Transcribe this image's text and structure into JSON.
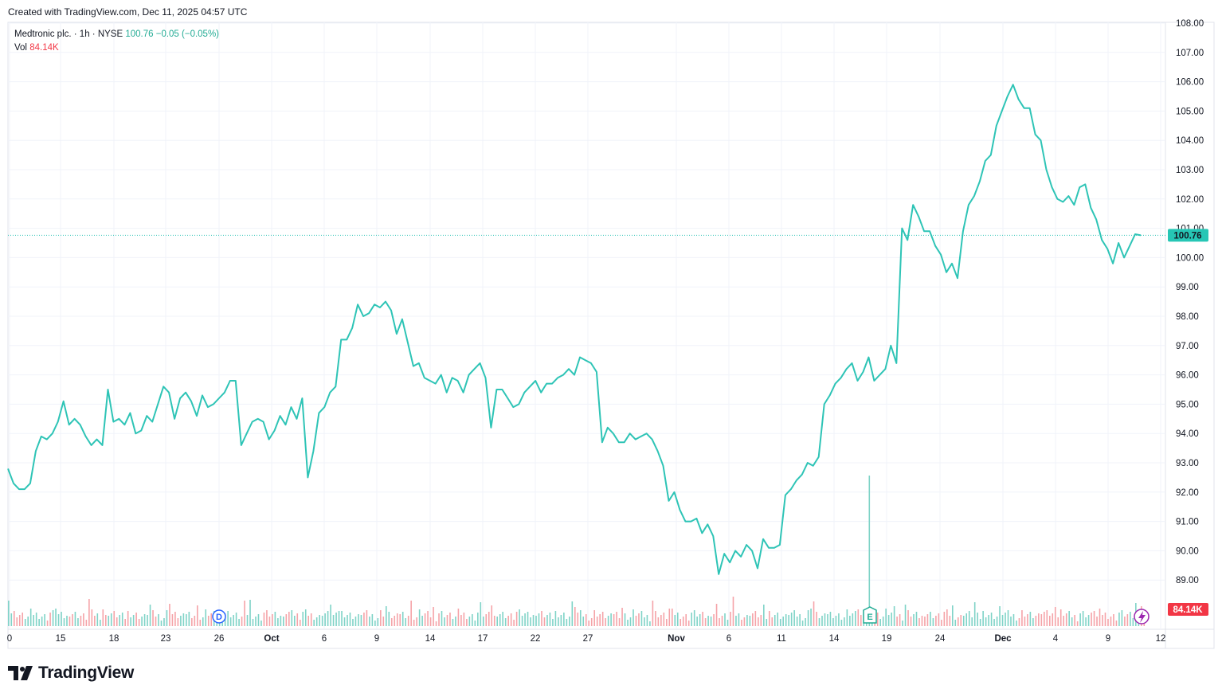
{
  "header": {
    "created_text": "Created with TradingView.com, Dec 11, 2025 04:57 UTC"
  },
  "legend": {
    "symbol": "Medtronic plc. · 1h · NYSE",
    "price": "100.76",
    "change": "−0.05 (−0.05%)",
    "vol_label": "Vol",
    "vol_value": "84.14K"
  },
  "colors": {
    "line": "#2ec4b6",
    "vol_up": "#7fd3c7",
    "vol_down": "#f5a3a8",
    "grid": "#f0f3fa",
    "price_tag": "#26c6b5",
    "vol_tag": "#f23645"
  },
  "markers": {
    "dividend_icon": "D",
    "earnings_icon": "E"
  },
  "brand": {
    "name": "TradingView"
  },
  "chart_data": {
    "type": "line",
    "title": "",
    "symbol": "Medtronic plc.",
    "interval": "1h",
    "exchange": "NYSE",
    "last_price": 100.76,
    "last_price_label": "100.76",
    "volume_label": "84.14K",
    "ylim": [
      88.0,
      108.0
    ],
    "y_ticks": [
      "89.00",
      "90.00",
      "91.00",
      "92.00",
      "93.00",
      "94.00",
      "95.00",
      "96.00",
      "97.00",
      "98.00",
      "99.00",
      "100.00",
      "101.00",
      "102.00",
      "103.00",
      "104.00",
      "105.00",
      "106.00",
      "107.00",
      "108.00"
    ],
    "x_ticks": [
      "0",
      "15",
      "18",
      "23",
      "26",
      "Oct",
      "6",
      "9",
      "14",
      "17",
      "22",
      "27",
      "Nov",
      "6",
      "11",
      "14",
      "19",
      "24",
      "Dec",
      "4",
      "9",
      "12"
    ],
    "series": [
      {
        "values": [
          92.8,
          92.3,
          92.1,
          92.1,
          92.3,
          93.4,
          93.9,
          93.8,
          94.0,
          94.4,
          95.1,
          94.3,
          94.5,
          94.3,
          93.9,
          93.6,
          93.8,
          93.6,
          95.5,
          94.4,
          94.5,
          94.3,
          94.7,
          94.0,
          94.1,
          94.6,
          94.4,
          95.0,
          95.6,
          95.4,
          94.5,
          95.2,
          95.4,
          95.1,
          94.6,
          95.3,
          94.9,
          95.0,
          95.2,
          95.4,
          95.8,
          95.8,
          93.6,
          94.0,
          94.4,
          94.5,
          94.4,
          93.8,
          94.1,
          94.6,
          94.3,
          94.9,
          94.5,
          95.2,
          92.5,
          93.4,
          94.7,
          94.9,
          95.4,
          95.6,
          97.2,
          97.2,
          97.6,
          98.4,
          98.0,
          98.1,
          98.4,
          98.3,
          98.5,
          98.2,
          97.4,
          97.9,
          97.1,
          96.3,
          96.4,
          95.9,
          95.8,
          95.7,
          96.0,
          95.4,
          95.9,
          95.8,
          95.4,
          96.0,
          96.2,
          96.4,
          95.9,
          94.2,
          95.5,
          95.5,
          95.2,
          94.9,
          95.0,
          95.4,
          95.6,
          95.8,
          95.4,
          95.7,
          95.7,
          95.9,
          96.0,
          96.2,
          96.0,
          96.6,
          96.5,
          96.4,
          96.1,
          93.7,
          94.2,
          94.0,
          93.7,
          93.7,
          94.0,
          93.8,
          93.9,
          94.0,
          93.8,
          93.4,
          92.9,
          91.7,
          92.0,
          91.4,
          91.0,
          91.0,
          91.1,
          90.6,
          90.9,
          90.5,
          89.2,
          89.9,
          89.6,
          90.0,
          89.8,
          90.2,
          90.0,
          89.4,
          90.4,
          90.1,
          90.1,
          90.2,
          91.9,
          92.1,
          92.4,
          92.6,
          93.0,
          92.9,
          93.2,
          95.0,
          95.3,
          95.7,
          95.9,
          96.2,
          96.4,
          95.8,
          96.1,
          96.6,
          95.8,
          96.0,
          96.2,
          97.0,
          96.4,
          101.0,
          100.6,
          101.8,
          101.4,
          100.9,
          100.9,
          100.4,
          100.1,
          99.5,
          99.8,
          99.3,
          100.9,
          101.8,
          102.1,
          102.6,
          103.3,
          103.5,
          104.5,
          105.0,
          105.5,
          105.9,
          105.4,
          105.1,
          105.1,
          104.2,
          104.0,
          103.0,
          102.4,
          102.0,
          101.9,
          102.1,
          101.8,
          102.4,
          102.5,
          101.7,
          101.3,
          100.6,
          100.3,
          99.8,
          100.5,
          100.0,
          100.4,
          100.8,
          100.76
        ]
      }
    ],
    "volume_spike_label": "earnings"
  }
}
